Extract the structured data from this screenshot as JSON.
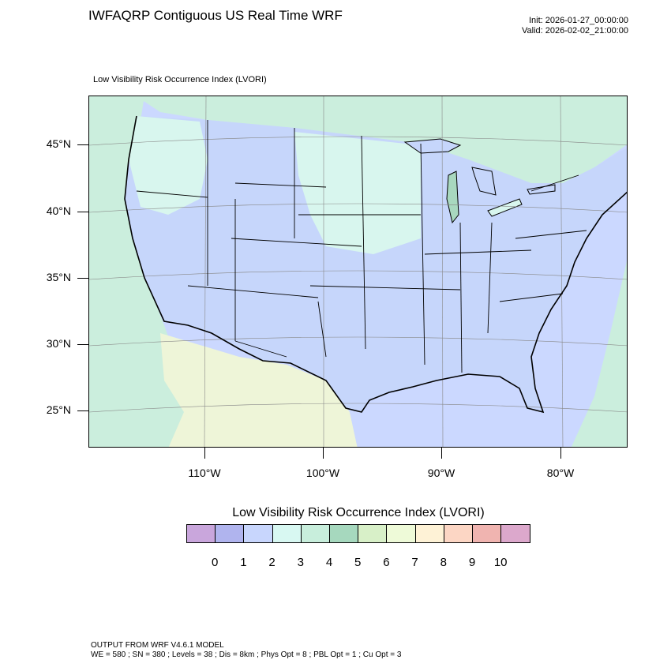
{
  "header": {
    "title": "IWFAQRP Contiguous US Real Time WRF",
    "init": "Init: 2026-01-27_00:00:00",
    "valid": "Valid: 2026-02-02_21:00:00"
  },
  "map": {
    "subtitle": "Low Visibility Risk Occurrence Index   (LVORI)",
    "lat_labels": [
      "45°N",
      "40°N",
      "35°N",
      "30°N",
      "25°N"
    ],
    "lon_labels": [
      "110°W",
      "100°W",
      "90°W",
      "80°W"
    ],
    "colors": {
      "ocean": "#cbd8ff",
      "land_low": "#c6d6fb",
      "land_green": "#cbeedd",
      "land_mint": "#d8f6ee",
      "land_dark": "#a8d8bf",
      "land_tan": "#eef5d8",
      "boundary": "#000000"
    }
  },
  "legend": {
    "title": "Low Visibility Risk Occurrence Index  (LVORI)",
    "colors": [
      "#c9a6dc",
      "#b0b4ee",
      "#c8d6fd",
      "#d8f8f2",
      "#c8eedc",
      "#a6d8be",
      "#d8f0c8",
      "#eefad8",
      "#fef2d6",
      "#fcd6c4",
      "#f0b4b0",
      "#dca8cc"
    ],
    "labels": [
      "0",
      "1",
      "2",
      "3",
      "4",
      "5",
      "6",
      "7",
      "8",
      "9",
      "10"
    ]
  },
  "footer": {
    "line1": "OUTPUT FROM WRF V4.6.1 MODEL",
    "line2": "WE = 580 ; SN = 380 ; Levels = 38 ; Dis = 8km ; Phys Opt = 8 ; PBL Opt = 1 ; Cu Opt = 3"
  }
}
